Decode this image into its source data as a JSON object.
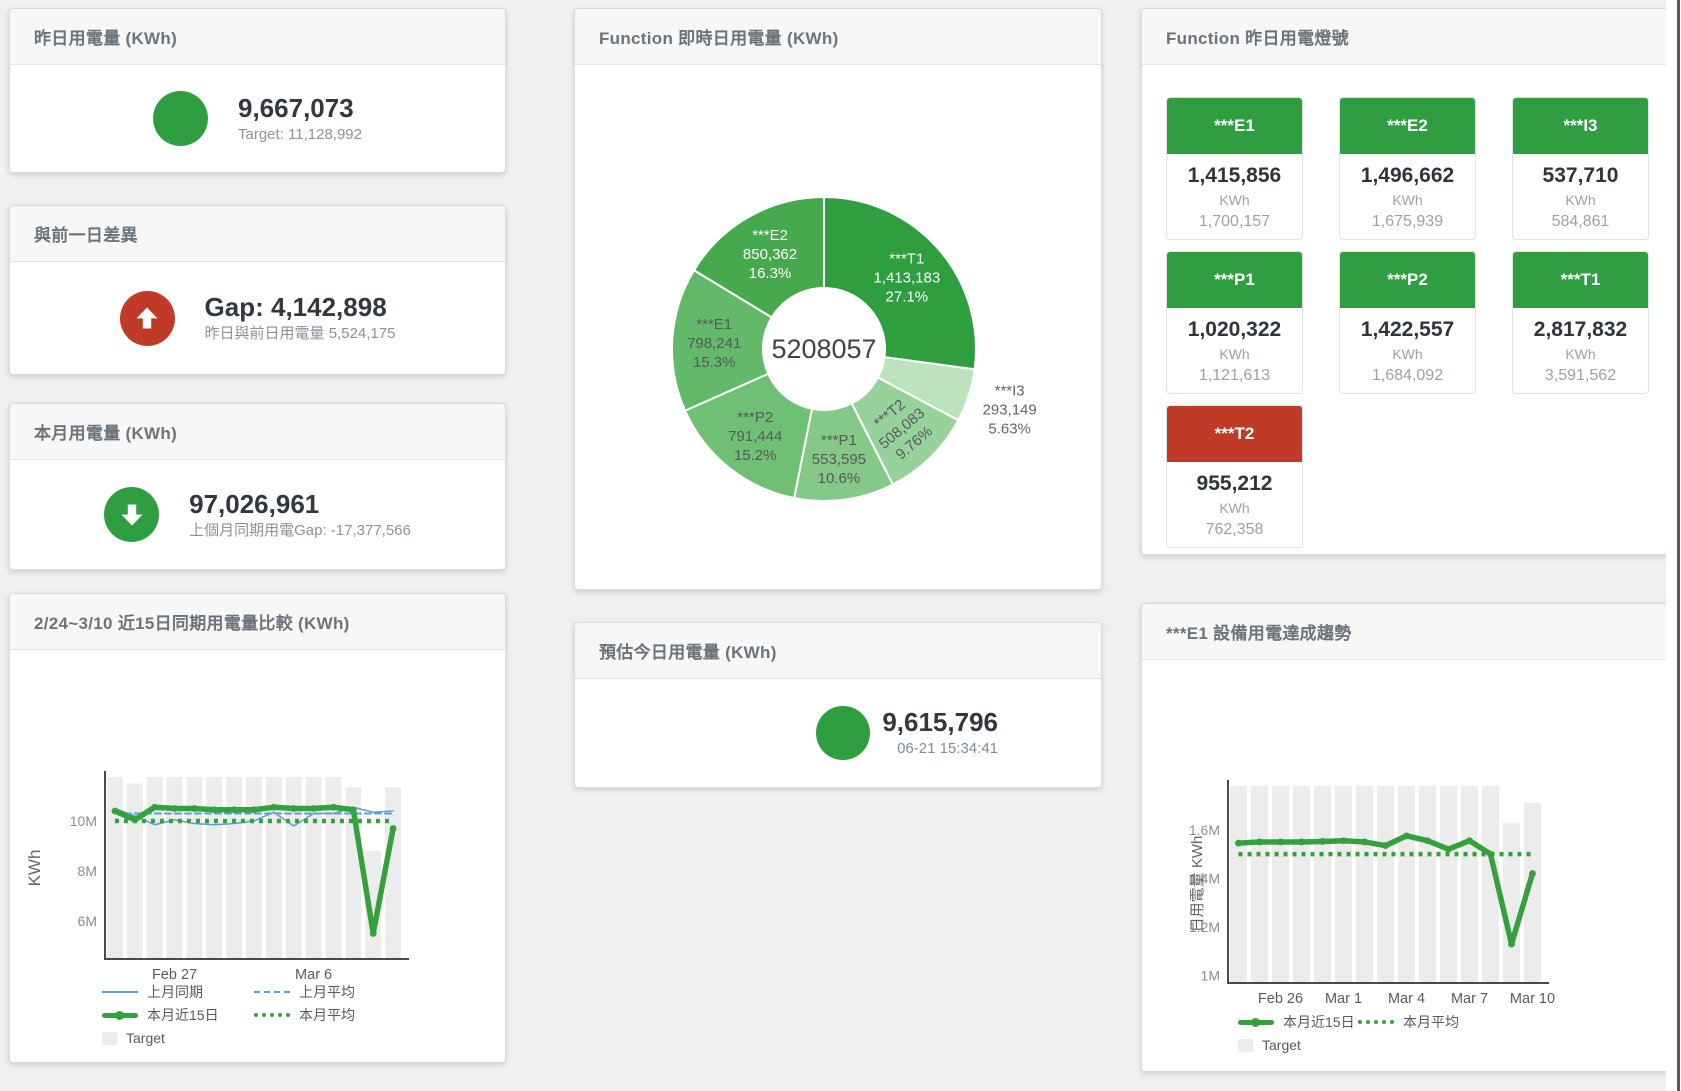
{
  "cards": {
    "yesterday": {
      "title": "昨日用電量 (KWh)",
      "value": "9,667,073",
      "subtext": "Target: 11,128,992",
      "status": "green"
    },
    "day_gap": {
      "title": "與前一日差異",
      "value": "Gap: 4,142,898",
      "subtext": "昨日與前日用電量 5,524,175",
      "status": "red",
      "icon": "arrow-up"
    },
    "month": {
      "title": "本月用電量 (KWh)",
      "value": "97,026,961",
      "subtext": "上個月同期用電Gap: -17,377,566",
      "status": "green",
      "icon": "arrow-down"
    },
    "estimate": {
      "title": "預估今日用電量 (KWh)",
      "value": "9,615,796",
      "subtext": "06-21 15:34:41",
      "status": "green"
    }
  },
  "lights": {
    "title": "Function 昨日用電燈號",
    "tiles": [
      {
        "label": "***E1",
        "value": "1,415,856",
        "unit": "KWh",
        "target": "1,700,157",
        "status": "green"
      },
      {
        "label": "***E2",
        "value": "1,496,662",
        "unit": "KWh",
        "target": "1,675,939",
        "status": "green"
      },
      {
        "label": "***I3",
        "value": "537,710",
        "unit": "KWh",
        "target": "584,861",
        "status": "green"
      },
      {
        "label": "***P1",
        "value": "1,020,322",
        "unit": "KWh",
        "target": "1,121,613",
        "status": "green"
      },
      {
        "label": "***P2",
        "value": "1,422,557",
        "unit": "KWh",
        "target": "1,684,092",
        "status": "green"
      },
      {
        "label": "***T1",
        "value": "2,817,832",
        "unit": "KWh",
        "target": "3,591,562",
        "status": "green"
      },
      {
        "label": "***T2",
        "value": "955,212",
        "unit": "KWh",
        "target": "762,358",
        "status": "red"
      }
    ]
  },
  "chart_data": [
    {
      "id": "realtime_donut",
      "type": "pie",
      "title": "Function 即時日用電量 (KWh)",
      "center_label": "5208057",
      "slices": [
        {
          "name": "***T1",
          "value": 1413183,
          "pct": "27.1%",
          "color": "#2e9e3f",
          "label_color": "#ffffff",
          "label_pos": "inside"
        },
        {
          "name": "***I3",
          "value": 293149,
          "pct": "5.63%",
          "color": "#bce3bd",
          "label_color": "#606669",
          "label_pos": "outside"
        },
        {
          "name": "***T2",
          "value": 508083,
          "pct": "9.76%",
          "color": "#98d29b",
          "label_color": "#55595c",
          "label_pos": "inside-rotated"
        },
        {
          "name": "***P1",
          "value": 553595,
          "pct": "10.6%",
          "color": "#84c987",
          "label_color": "#55595c",
          "label_pos": "inside"
        },
        {
          "name": "***P2",
          "value": 791444,
          "pct": "15.2%",
          "color": "#6fbf74",
          "label_color": "#55595c",
          "label_pos": "inside"
        },
        {
          "name": "***E1",
          "value": 798241,
          "pct": "15.3%",
          "color": "#63b96a",
          "label_color": "#55595c",
          "label_pos": "inside"
        },
        {
          "name": "***E2",
          "value": 850362,
          "pct": "16.3%",
          "color": "#46a94e",
          "label_color": "#ffffff",
          "label_pos": "inside"
        }
      ]
    },
    {
      "id": "compare15",
      "type": "line",
      "title": "2/24~3/10 近15日同期用電量比較 (KWh)",
      "ylabel": "KWh",
      "unit": "M KWh",
      "ylim": [
        4.48,
        11.76
      ],
      "yticks": [
        {
          "label": "10M",
          "value": 10
        },
        {
          "label": "8M",
          "value": 8
        },
        {
          "label": "6M",
          "value": 6
        }
      ],
      "xticks": [
        {
          "label": "Feb 27",
          "index": 3
        },
        {
          "label": "Mar 6",
          "index": 10
        }
      ],
      "grid": false,
      "legend_position": "bottom",
      "target": {
        "name": "Target",
        "color": "#ececec",
        "values": [
          11.76,
          11.5,
          11.76,
          11.76,
          11.76,
          11.76,
          11.76,
          11.76,
          11.76,
          11.76,
          11.76,
          11.76,
          11.35,
          8.8,
          11.35
        ]
      },
      "series": [
        {
          "name": "上月同期",
          "color": "#5b9fd6",
          "style": "solid",
          "width": 1.5,
          "marker": false,
          "values": [
            10.5,
            10.2,
            9.85,
            10.05,
            9.9,
            9.85,
            9.9,
            10.0,
            10.35,
            9.8,
            10.3,
            10.3,
            10.55,
            10.35,
            10.4
          ]
        },
        {
          "name": "上月平均",
          "color": "#5b9fd6",
          "style": "dashed",
          "width": 2,
          "marker": false,
          "values": [
            10.3,
            10.3,
            10.3,
            10.3,
            10.3,
            10.3,
            10.3,
            10.3,
            10.3,
            10.3,
            10.3,
            10.3,
            10.3,
            10.3,
            10.3
          ]
        },
        {
          "name": "本月近15日",
          "color": "#35a13c",
          "style": "solid",
          "width": 5.5,
          "marker": true,
          "values": [
            10.4,
            10.05,
            10.55,
            10.5,
            10.5,
            10.45,
            10.45,
            10.45,
            10.55,
            10.5,
            10.5,
            10.55,
            10.45,
            5.5,
            9.7
          ]
        },
        {
          "name": "本月平均",
          "color": "#35a13c",
          "style": "dotted",
          "width": 4.5,
          "marker": false,
          "values": [
            10.0,
            10.0,
            10.0,
            10.0,
            10.0,
            10.0,
            10.0,
            10.0,
            10.0,
            10.0,
            10.0,
            10.0,
            10.0,
            10.0,
            10.0
          ]
        }
      ]
    },
    {
      "id": "e1_trend",
      "type": "line",
      "title": "***E1 設備用電達成趨勢",
      "ylabel": "日用電量 KWh",
      "unit": "M KWh",
      "ylim": [
        0.97,
        1.78
      ],
      "yticks": [
        {
          "label": "1.6M",
          "value": 1.6
        },
        {
          "label": "1.4M",
          "value": 1.4
        },
        {
          "label": "1.2M",
          "value": 1.2
        },
        {
          "label": "1M",
          "value": 1.0
        }
      ],
      "xticks": [
        {
          "label": "Feb 26",
          "index": 2
        },
        {
          "label": "Mar 1",
          "index": 5
        },
        {
          "label": "Mar 4",
          "index": 8
        },
        {
          "label": "Mar 7",
          "index": 11
        },
        {
          "label": "Mar 10",
          "index": 14
        }
      ],
      "grid": false,
      "legend_position": "bottom",
      "target": {
        "name": "Target",
        "color": "#ececec",
        "values": [
          1.78,
          1.78,
          1.78,
          1.78,
          1.78,
          1.78,
          1.78,
          1.78,
          1.78,
          1.78,
          1.78,
          1.78,
          1.78,
          1.63,
          1.71
        ]
      },
      "series": [
        {
          "name": "本月近15日",
          "color": "#35a13c",
          "style": "solid",
          "width": 5.5,
          "marker": true,
          "values": [
            1.545,
            1.55,
            1.55,
            1.55,
            1.552,
            1.555,
            1.55,
            1.535,
            1.575,
            1.555,
            1.52,
            1.555,
            1.5,
            1.13,
            1.42
          ]
        },
        {
          "name": "本月平均",
          "color": "#35a13c",
          "style": "dotted",
          "width": 4.5,
          "marker": false,
          "values": [
            1.5,
            1.5,
            1.5,
            1.5,
            1.5,
            1.5,
            1.5,
            1.5,
            1.5,
            1.5,
            1.5,
            1.5,
            1.5,
            1.5,
            1.5
          ]
        }
      ]
    }
  ]
}
